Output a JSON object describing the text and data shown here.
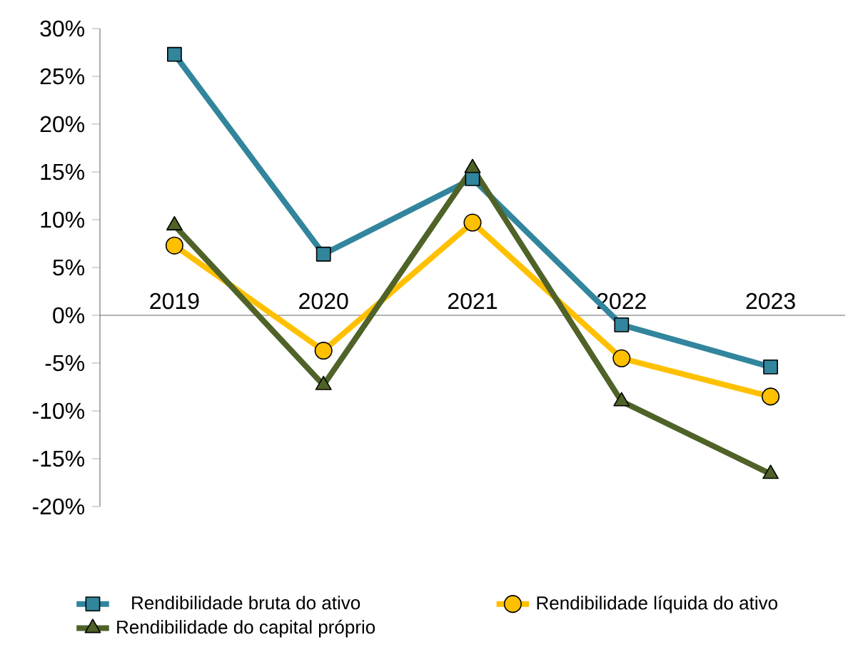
{
  "chart_data": {
    "type": "line",
    "categories": [
      "2019",
      "2020",
      "2021",
      "2022",
      "2023"
    ],
    "series": [
      {
        "name": "Rendibilidade bruta do ativo",
        "color": "#31859c",
        "marker": "square",
        "values": [
          27.3,
          6.4,
          14.3,
          -1.0,
          -5.4
        ]
      },
      {
        "name": "Rendibilidade líquida do ativo",
        "color": "#ffc000",
        "marker": "circle",
        "values": [
          7.3,
          -3.7,
          9.7,
          -4.5,
          -8.5
        ]
      },
      {
        "name": "Rendibilidade do capital próprio",
        "color": "#4f6228",
        "marker": "triangle",
        "values": [
          9.4,
          -7.3,
          15.4,
          -9.0,
          -16.6
        ]
      }
    ],
    "ylim": [
      -20,
      30
    ],
    "yticks": [
      {
        "value": -20,
        "label": "-20%"
      },
      {
        "value": -15,
        "label": "-15%"
      },
      {
        "value": -10,
        "label": "-10%"
      },
      {
        "value": -5,
        "label": "-5%"
      },
      {
        "value": 0,
        "label": "0%"
      },
      {
        "value": 5,
        "label": "5%"
      },
      {
        "value": 10,
        "label": "10%"
      },
      {
        "value": 15,
        "label": "15%"
      },
      {
        "value": 20,
        "label": "20%"
      },
      {
        "value": 25,
        "label": "25%"
      },
      {
        "value": 30,
        "label": "30%"
      }
    ],
    "legend": "bottom",
    "grid": false,
    "line_style": "solid"
  }
}
